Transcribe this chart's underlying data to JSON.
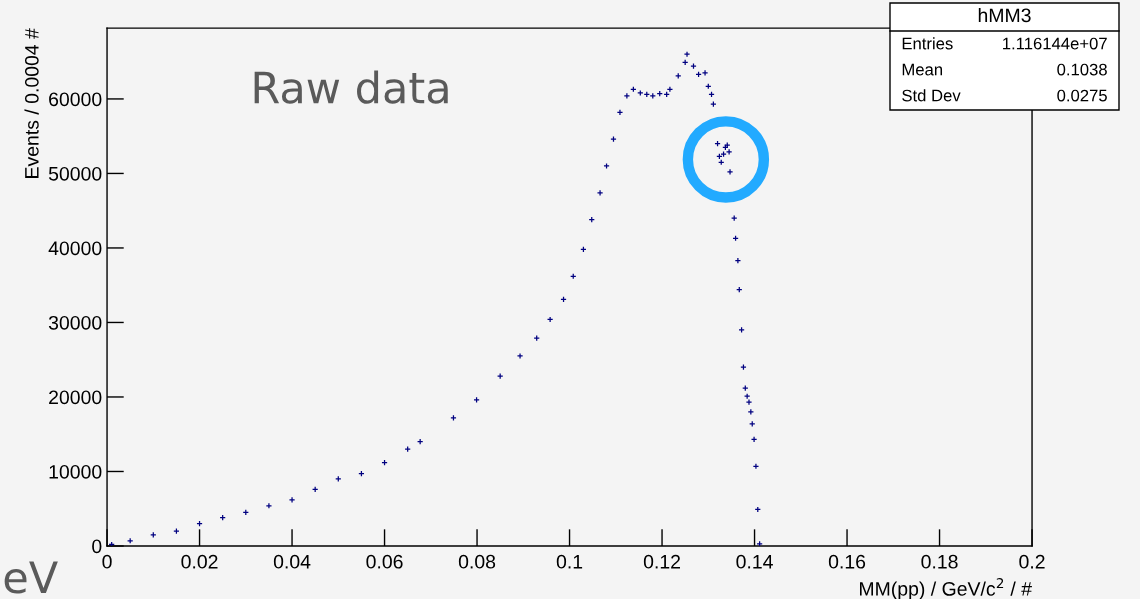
{
  "chart_data": {
    "type": "scatter",
    "xlabel": "MM(pp) / GeV/c$^{2}$ / #",
    "ylabel": "Events / 0.0004 #",
    "annotations": [
      "Raw data",
      "eV",
      "hMM3",
      "Entries",
      "1.116144e+07",
      "Mean",
      "0.1038",
      "Std Dev",
      "0.0275"
    ],
    "x": [
      0.001,
      0.005,
      0.01,
      0.015,
      0.02,
      0.025,
      0.03,
      0.035,
      0.04,
      0.045,
      0.05,
      0.055,
      0.06,
      0.065,
      0.0677,
      0.0749,
      0.0799,
      0.085,
      0.0893,
      0.0929,
      0.0958,
      0.0987,
      0.1008,
      0.103,
      0.1048,
      0.1066,
      0.108,
      0.1095,
      0.1109,
      0.1124,
      0.1138,
      0.1153,
      0.1167,
      0.118,
      0.1195,
      0.121,
      0.1217,
      0.1235,
      0.125,
      0.1254,
      0.1268,
      0.1279,
      0.1293,
      0.13,
      0.1307,
      0.1311,
      0.132,
      0.1324,
      0.1328,
      0.1333,
      0.1337,
      0.1341,
      0.1345,
      0.1347,
      0.1356,
      0.1359,
      0.1364,
      0.1367,
      0.1372,
      0.1376,
      0.138,
      0.1384,
      0.1388,
      0.1392,
      0.1395,
      0.1399,
      0.1403,
      0.1407,
      0.1411
    ],
    "values": [
      200,
      700,
      1500,
      2000,
      3000,
      3800,
      4500,
      5400,
      6200,
      7600,
      9000,
      9700,
      11200,
      13000,
      14000,
      17200,
      19600,
      22800,
      25500,
      27900,
      30400,
      33100,
      36200,
      39800,
      43800,
      47400,
      51000,
      54600,
      58200,
      60400,
      61300,
      60800,
      60600,
      60400,
      60700,
      60600,
      61300,
      63100,
      64900,
      66000,
      64400,
      63300,
      63500,
      61700,
      60600,
      59300,
      54000,
      52300,
      51500,
      52600,
      53500,
      53800,
      52900,
      50200,
      44000,
      41300,
      38300,
      34400,
      29000,
      24000,
      21200,
      20100,
      19300,
      18000,
      16400,
      14300,
      10700,
      4900,
      300
    ],
    "color": "#000080",
    "marker": "cross",
    "grid": false,
    "xlim": [
      0,
      0.2
    ],
    "xticks": [
      0,
      0.02,
      0.04,
      0.06,
      0.08,
      0.1,
      0.12,
      0.14,
      0.16,
      0.18,
      0.2
    ],
    "ylim": [
      0,
      69500
    ],
    "yticks": [
      0,
      10000,
      20000,
      30000,
      40000,
      50000,
      60000
    ]
  }
}
